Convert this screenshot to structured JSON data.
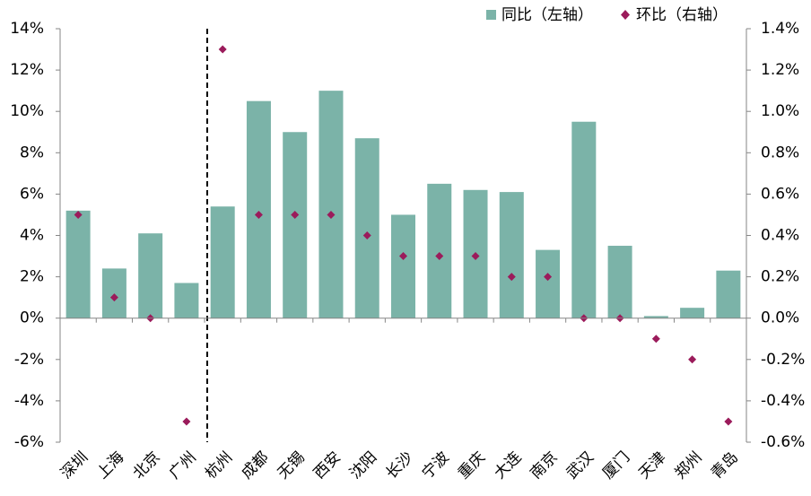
{
  "chart_data": {
    "type": "bar",
    "categories": [
      "深圳",
      "上海",
      "北京",
      "广州",
      "杭州",
      "成都",
      "无锡",
      "西安",
      "沈阳",
      "长沙",
      "宁波",
      "重庆",
      "大连",
      "南京",
      "武汉",
      "厦门",
      "天津",
      "郑州",
      "青岛"
    ],
    "series": [
      {
        "name": "同比（左轴）",
        "color": "#7bb3a8",
        "type": "bar",
        "values": [
          5.2,
          2.4,
          4.1,
          1.7,
          5.4,
          10.5,
          9.0,
          11.0,
          8.7,
          5.0,
          6.5,
          6.2,
          6.1,
          3.3,
          9.5,
          3.5,
          0.1,
          0.5,
          2.3
        ]
      },
      {
        "name": "环比（右轴）",
        "color": "#9b1b5b",
        "type": "scatter",
        "axis": "y2",
        "values": [
          0.5,
          0.1,
          0.0,
          -0.5,
          1.3,
          0.5,
          0.5,
          0.5,
          0.4,
          0.3,
          0.3,
          0.3,
          0.2,
          0.2,
          0.0,
          0.0,
          -0.1,
          -0.2,
          -0.5
        ]
      }
    ],
    "ylim": [
      -6,
      14
    ],
    "yticks": [
      {
        "value": -6,
        "label": "-6%"
      },
      {
        "value": -4,
        "label": "-4%"
      },
      {
        "value": -2,
        "label": "-2%"
      },
      {
        "value": 0,
        "label": "0%"
      },
      {
        "value": 2,
        "label": "2%"
      },
      {
        "value": 4,
        "label": "4%"
      },
      {
        "value": 6,
        "label": "6%"
      },
      {
        "value": 8,
        "label": "8%"
      },
      {
        "value": 10,
        "label": "10%"
      },
      {
        "value": 12,
        "label": "12%"
      },
      {
        "value": 14,
        "label": "14%"
      }
    ],
    "y2lim": [
      -0.6,
      1.4
    ],
    "y2ticks": [
      {
        "value": -0.6,
        "label": "-0.6%"
      },
      {
        "value": -0.4,
        "label": "-0.4%"
      },
      {
        "value": -0.2,
        "label": "-0.2%"
      },
      {
        "value": 0,
        "label": "0.0%"
      },
      {
        "value": 0.2,
        "label": "0.2%"
      },
      {
        "value": 0.4,
        "label": "0.4%"
      },
      {
        "value": 0.6,
        "label": "0.6%"
      },
      {
        "value": 0.8,
        "label": "0.8%"
      },
      {
        "value": 1.0,
        "label": "1.0%"
      },
      {
        "value": 1.2,
        "label": "1.2%"
      },
      {
        "value": 1.4,
        "label": "1.4%"
      }
    ],
    "grid": false,
    "legend": "top-right"
  }
}
